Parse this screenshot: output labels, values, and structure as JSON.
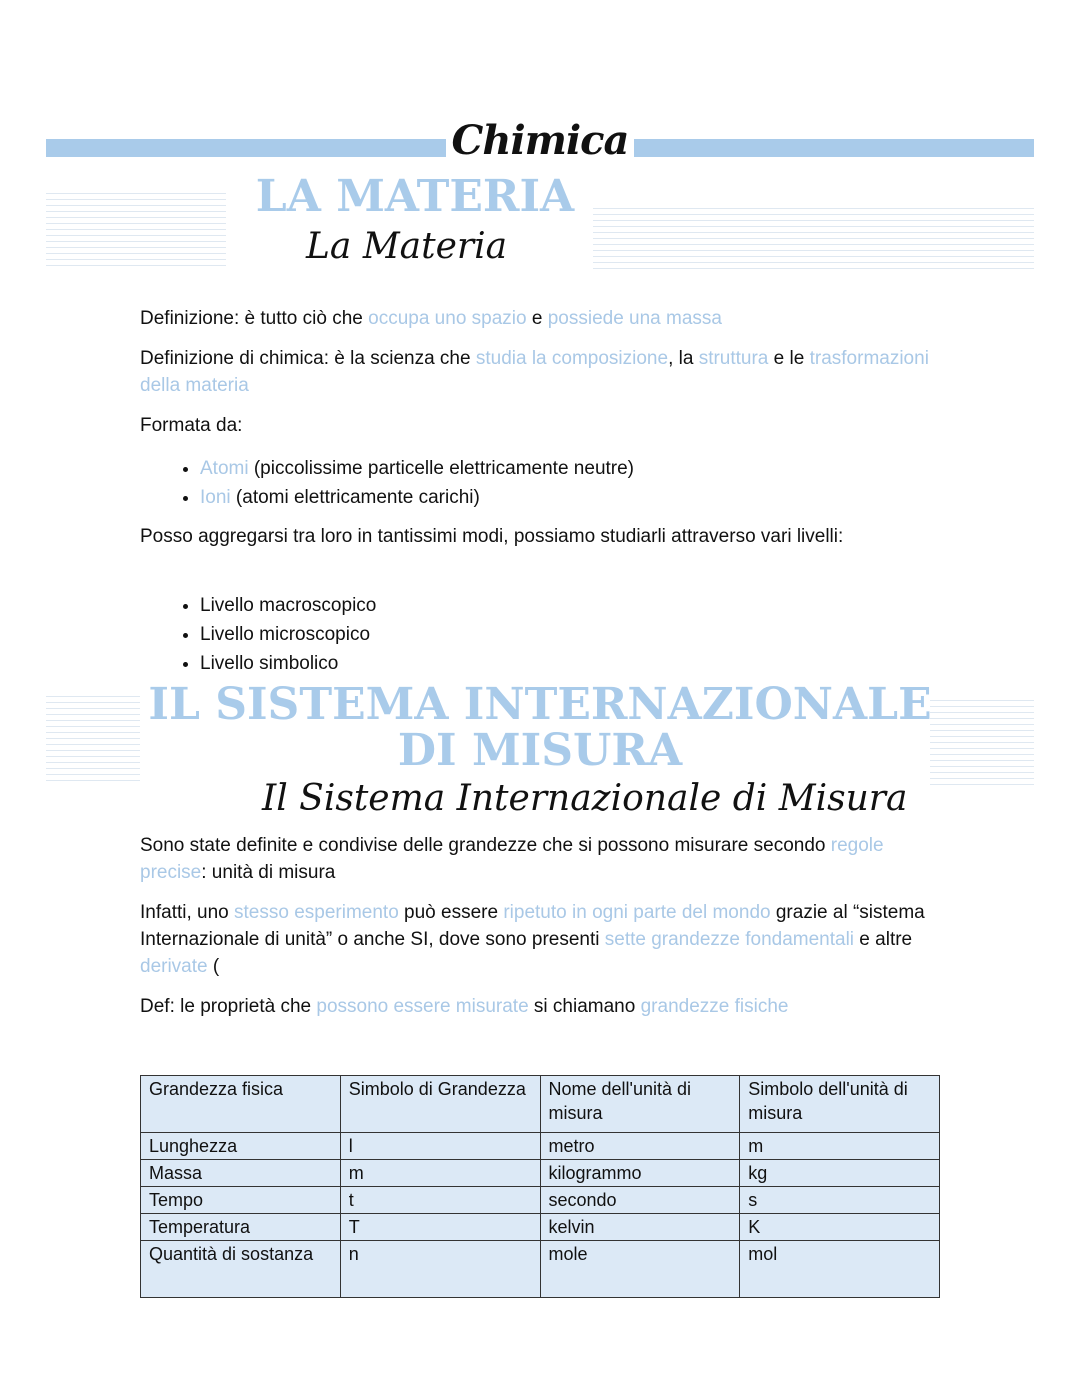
{
  "title": "Chimica",
  "section1": {
    "watermark": "LA MATERIA",
    "heading": "La Materia"
  },
  "paragraphs1": [
    [
      {
        "t": "Definizione: è tutto ciò che "
      },
      {
        "t": "occupa uno spazio",
        "hl": true
      },
      {
        "t": " e "
      },
      {
        "t": "possiede una massa",
        "hl": true
      }
    ],
    [
      {
        "t": "Definizione di chimica: è la scienza che "
      },
      {
        "t": "studia la composizione",
        "hl": true
      },
      {
        "t": ", la "
      },
      {
        "t": "struttura",
        "hl": true
      },
      {
        "t": " e le "
      },
      {
        "t": "trasformazioni della materia",
        "hl": true
      }
    ],
    [
      {
        "t": "Formata da:"
      }
    ]
  ],
  "list1": [
    [
      {
        "t": "Atomi",
        "hl": true
      },
      {
        "t": " (piccolissime particelle elettricamente neutre)"
      }
    ],
    [
      {
        "t": "Ioni",
        "hl": true
      },
      {
        "t": " (atomi elettricamente carichi)"
      }
    ]
  ],
  "paragraph2": [
    {
      "t": "Posso aggregarsi tra loro in tantissimi modi, possiamo studiarli attraverso vari livelli:"
    }
  ],
  "list2": [
    [
      {
        "t": "Livello macroscopico"
      }
    ],
    [
      {
        "t": "Livello microscopico"
      }
    ],
    [
      {
        "t": "Livello simbolico"
      }
    ]
  ],
  "section2": {
    "watermark_line1": "IL SISTEMA INTERNAZIONALE",
    "watermark_line2": "DI MISURA",
    "heading": "Il Sistema Internazionale di Misura"
  },
  "paragraphs3": [
    [
      {
        "t": "Sono state definite e condivise delle grandezze che si possono misurare secondo "
      },
      {
        "t": "regole precise",
        "hl": true
      },
      {
        "t": ": unità di misura"
      }
    ],
    [
      {
        "t": "Infatti, uno "
      },
      {
        "t": "stesso esperimento",
        "hl": true
      },
      {
        "t": " può essere "
      },
      {
        "t": "ripetuto in ogni parte del mondo",
        "hl": true
      },
      {
        "t": " grazie al “sistema Internazionale di unità” o anche SI, dove sono presenti "
      },
      {
        "t": "sette grandezze fondamentali",
        "hl": true
      },
      {
        "t": " e altre "
      },
      {
        "t": "derivate",
        "hl": true
      },
      {
        "t": " ("
      }
    ],
    [
      {
        "t": "Def: le proprietà che "
      },
      {
        "t": "possono essere misurate",
        "hl": true
      },
      {
        "t": " si chiamano "
      },
      {
        "t": "grandezze fisiche",
        "hl": true
      }
    ]
  ],
  "table": {
    "headers": [
      "Grandezza fisica",
      "Simbolo di Grandezza",
      "Nome dell'unità di misura",
      "Simbolo dell'unità di misura"
    ],
    "rows": [
      [
        "Lunghezza",
        "l",
        "metro",
        "m"
      ],
      [
        "Massa",
        "m",
        "kilogrammo",
        "kg"
      ],
      [
        "Tempo",
        "t",
        "secondo",
        "s"
      ],
      [
        "Temperatura",
        "T",
        "kelvin",
        "K"
      ],
      [
        "Quantità di sostanza",
        "n",
        "mole",
        "mol"
      ]
    ]
  },
  "colors": {
    "accent": "#a9cbea",
    "highlight_text": "#a9c8e6",
    "table_bg": "#dce9f6"
  }
}
